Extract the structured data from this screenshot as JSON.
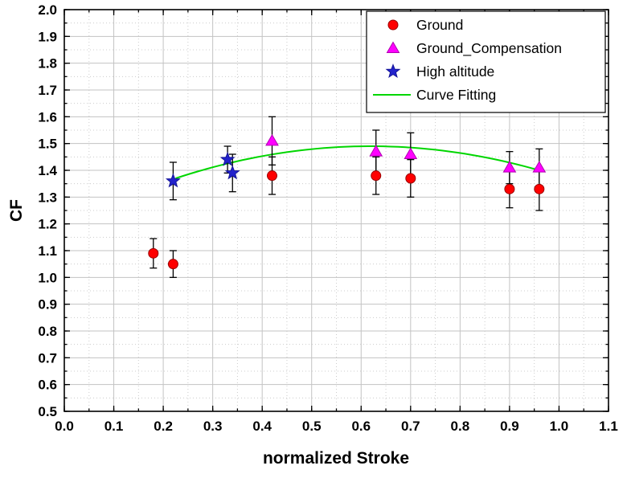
{
  "chart_data": {
    "type": "scatter",
    "title": "",
    "xlabel": "normalized Stroke",
    "ylabel": "CF",
    "xlim": [
      0.0,
      1.1
    ],
    "ylim": [
      0.5,
      2.0
    ],
    "x_major_step": 0.1,
    "y_major_step": 0.1,
    "x_minor_step": 0.05,
    "y_minor_step": 0.05,
    "grid": true,
    "legend_position": "top-right",
    "error_bar_color": "#000000",
    "cap_half_width": 4.5,
    "series": [
      {
        "name": "Ground",
        "marker": "circle",
        "color": "#ff0000",
        "edge_color": "#990000",
        "points": [
          {
            "x": 0.18,
            "y": 1.09,
            "err": 0.055
          },
          {
            "x": 0.22,
            "y": 1.05,
            "err": 0.05
          },
          {
            "x": 0.42,
            "y": 1.38,
            "err": 0.07
          },
          {
            "x": 0.63,
            "y": 1.38,
            "err": 0.07
          },
          {
            "x": 0.7,
            "y": 1.37,
            "err": 0.07
          },
          {
            "x": 0.9,
            "y": 1.33,
            "err": 0.07
          },
          {
            "x": 0.96,
            "y": 1.33,
            "err": 0.08
          }
        ]
      },
      {
        "name": "Ground_Compensation",
        "marker": "triangle",
        "color": "#ff00ff",
        "edge_color": "#b000b0",
        "points": [
          {
            "x": 0.42,
            "y": 1.51,
            "err": 0.09
          },
          {
            "x": 0.63,
            "y": 1.47,
            "err": 0.08
          },
          {
            "x": 0.7,
            "y": 1.46,
            "err": 0.08
          },
          {
            "x": 0.9,
            "y": 1.41,
            "err": 0.06
          },
          {
            "x": 0.96,
            "y": 1.41,
            "err": 0.07
          }
        ]
      },
      {
        "name": "High altitude",
        "marker": "star",
        "color": "#2222cc",
        "edge_color": "#151599",
        "points": [
          {
            "x": 0.22,
            "y": 1.36,
            "err": 0.07
          },
          {
            "x": 0.33,
            "y": 1.44,
            "err": 0.05
          },
          {
            "x": 0.34,
            "y": 1.39,
            "err": 0.07
          }
        ]
      }
    ],
    "fit": {
      "name": "Curve Fitting",
      "color": "#00d600",
      "poly": {
        "a": -0.7735,
        "b": 0.9574,
        "c": 1.19374
      },
      "x_start": 0.225,
      "x_end": 0.96,
      "peak": {
        "x": 0.62,
        "y": 1.49
      }
    },
    "x_tick_labels": [
      "0.0",
      "0.1",
      "0.2",
      "0.3",
      "0.4",
      "0.5",
      "0.6",
      "0.7",
      "0.8",
      "0.9",
      "1.0",
      "1.1"
    ],
    "y_tick_labels": [
      "0.5",
      "0.6",
      "0.7",
      "0.8",
      "0.9",
      "1.0",
      "1.1",
      "1.2",
      "1.3",
      "1.4",
      "1.5",
      "1.6",
      "1.7",
      "1.8",
      "1.9",
      "2.0"
    ]
  },
  "legend": {
    "items": [
      "Ground",
      "Ground_Compensation",
      "High altitude",
      "Curve Fitting"
    ]
  }
}
